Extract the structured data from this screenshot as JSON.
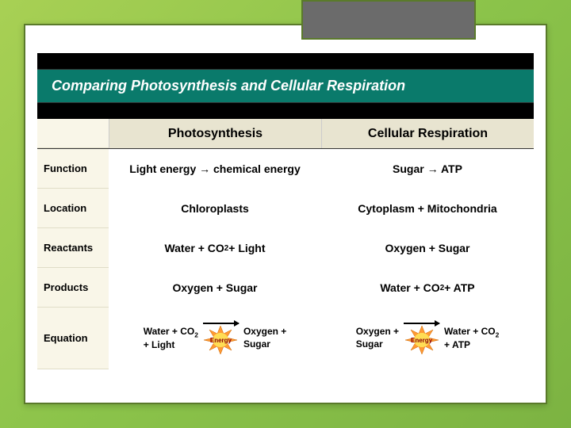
{
  "title": "Comparing Photosynthesis and Cellular Respiration",
  "columns": {
    "photo": "Photosynthesis",
    "resp": "Cellular Respiration"
  },
  "rows": {
    "function": {
      "label": "Function",
      "photo": "Light energy → chemical energy",
      "resp": "Sugar → ATP"
    },
    "location": {
      "label": "Location",
      "photo": "Chloroplasts",
      "resp": "Cytoplasm + Mitochondria"
    },
    "reactants": {
      "label": "Reactants",
      "photo_html": "Water + CO<sub>2</sub> + Light",
      "resp": "Oxygen + Sugar"
    },
    "products": {
      "label": "Products",
      "photo": "Oxygen + Sugar",
      "resp_html": "Water + CO<sub>2</sub> + ATP"
    },
    "equation": {
      "label": "Equation",
      "photo_left_html": "Water + CO<sub>2</sub><br>+ Light",
      "photo_right": "Oxygen +\nSugar",
      "resp_left": "Oxygen +\nSugar",
      "resp_right_html": "Water + CO<sub>2</sub><br>+ ATP",
      "burst_label": "Energy"
    }
  },
  "colors": {
    "title_bg": "#0a7a6b",
    "header_bg": "#e8e4d0",
    "label_bg": "#f9f6e8",
    "burst_fill": "#ff9933",
    "burst_center": "#ffdd55"
  }
}
